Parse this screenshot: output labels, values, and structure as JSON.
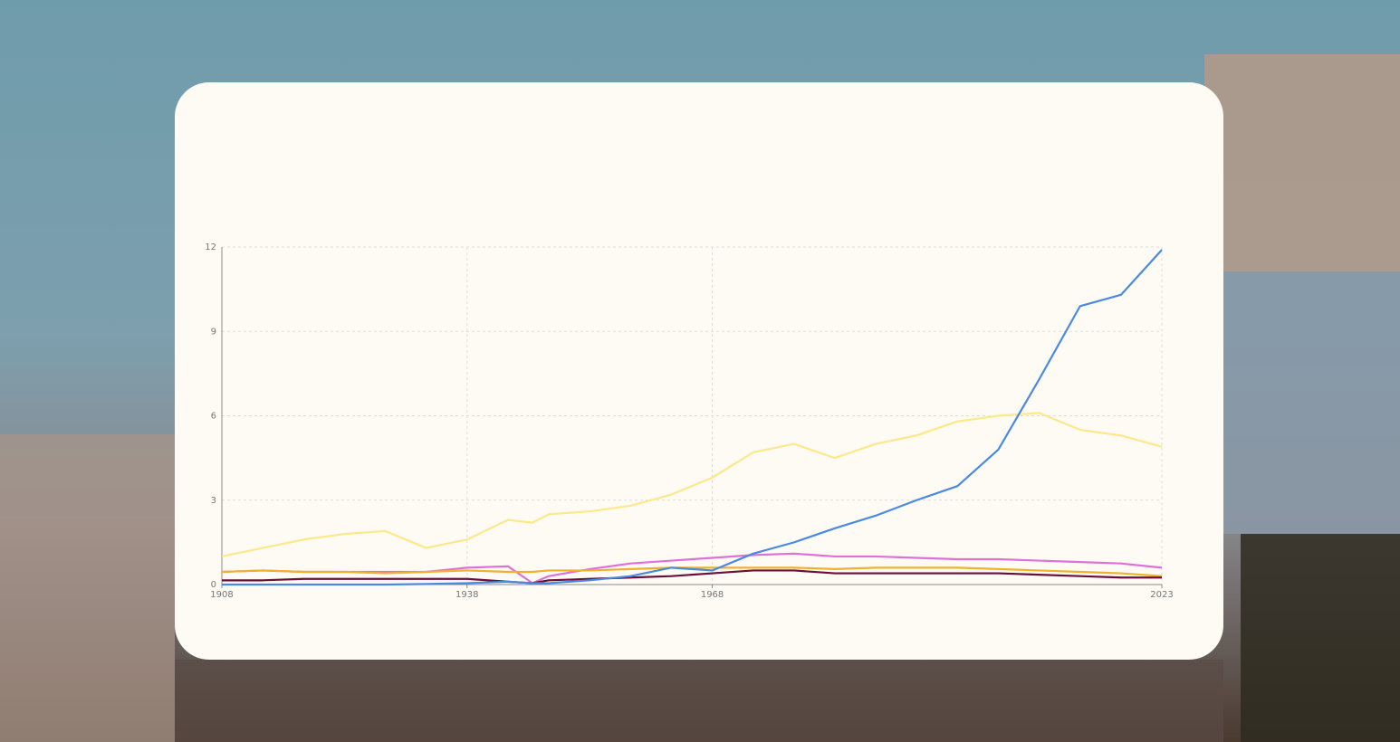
{
  "chart_data": {
    "type": "line",
    "x": [
      1908,
      1913,
      1918,
      1923,
      1928,
      1933,
      1938,
      1943,
      1946,
      1948,
      1953,
      1958,
      1963,
      1968,
      1973,
      1978,
      1983,
      1988,
      1993,
      1998,
      2003,
      2008,
      2013,
      2018,
      2023
    ],
    "series": [
      {
        "color": "#fde88a",
        "values": [
          1.0,
          1.3,
          1.6,
          1.8,
          1.9,
          1.3,
          1.6,
          2.3,
          2.2,
          2.5,
          2.6,
          2.8,
          3.2,
          3.8,
          4.7,
          5.0,
          4.5,
          5.0,
          5.3,
          5.8,
          6.0,
          6.1,
          5.5,
          5.3,
          4.9
        ]
      },
      {
        "color": "#e070d8",
        "values": [
          0.45,
          0.5,
          0.45,
          0.45,
          0.45,
          0.45,
          0.6,
          0.65,
          0.05,
          0.3,
          0.55,
          0.75,
          0.85,
          0.95,
          1.05,
          1.1,
          1.0,
          1.0,
          0.95,
          0.9,
          0.9,
          0.85,
          0.8,
          0.75,
          0.6
        ]
      },
      {
        "color": "#f0b030",
        "values": [
          0.45,
          0.5,
          0.45,
          0.45,
          0.4,
          0.45,
          0.5,
          0.45,
          0.45,
          0.5,
          0.5,
          0.55,
          0.6,
          0.6,
          0.6,
          0.6,
          0.55,
          0.6,
          0.6,
          0.6,
          0.55,
          0.5,
          0.45,
          0.4,
          0.3
        ]
      },
      {
        "color": "#6a0f38",
        "values": [
          0.15,
          0.15,
          0.2,
          0.2,
          0.2,
          0.2,
          0.2,
          0.1,
          0.05,
          0.15,
          0.2,
          0.25,
          0.3,
          0.4,
          0.5,
          0.5,
          0.4,
          0.4,
          0.4,
          0.4,
          0.4,
          0.35,
          0.3,
          0.25,
          0.25
        ]
      },
      {
        "color": "#4a8ae0",
        "values": [
          0,
          0,
          0,
          0,
          0,
          0.02,
          0.05,
          0.1,
          0.05,
          0.05,
          0.15,
          0.3,
          0.6,
          0.5,
          1.1,
          1.5,
          2.0,
          2.45,
          3.0,
          3.5,
          4.8,
          7.3,
          9.9,
          10.3,
          11.9
        ]
      }
    ],
    "xlim": [
      1908,
      2023
    ],
    "xticks": [
      1908,
      1938,
      1968,
      2023
    ],
    "ylim": [
      0,
      12
    ],
    "yticks": [
      0,
      3,
      6,
      9,
      12
    ],
    "grid": true
  }
}
